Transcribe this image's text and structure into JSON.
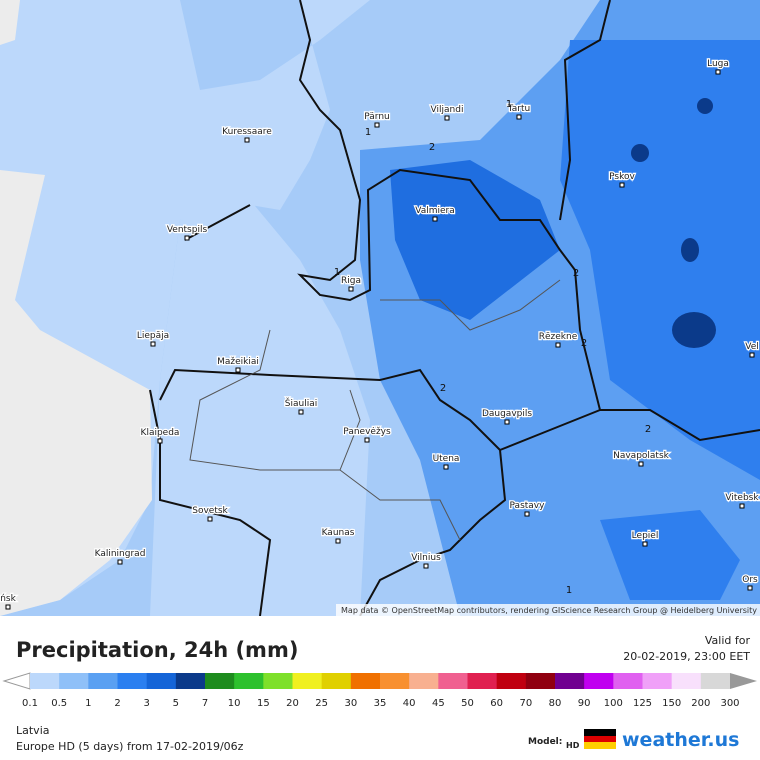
{
  "map": {
    "places": [
      "Kuressaare",
      "Pärnu",
      "Viljandi",
      "Tartu",
      "Luga",
      "Pskov",
      "Valmiera",
      "Ventspils",
      "Riga",
      "Rēzekne",
      "Liepāja",
      "Mažeikiai",
      "Šiauliai",
      "Daugavpils",
      "Panevėžys",
      "Klaipeda",
      "Navapolatsk",
      "Utena",
      "Vitebsk",
      "Sovetsk",
      "Pastavy",
      "Kaunas",
      "Lepiel",
      "Kaliningrad",
      "Vilnius",
      "Vel",
      "Ors",
      "ńsk"
    ],
    "contour_labels": [
      "1",
      "2",
      "1",
      "2",
      "2",
      "2",
      "2",
      "1",
      "1"
    ],
    "attribution": "Map data © OpenStreetMap contributors, rendering GIScience Research Group @ Heidelberg University"
  },
  "footer": {
    "title": "Precipitation, 24h (mm)",
    "valid_label": "Valid for",
    "valid_time": "20-02-2019, 23:00 EET",
    "region": "Latvia",
    "model_run": "Europe HD (5 days) from 17-02-2019/06z",
    "model_label": "Model:",
    "model_badge": "HD",
    "brand": "weather.us"
  },
  "legend": {
    "labels": [
      0.1,
      0.5,
      1,
      2,
      3,
      5,
      7,
      10,
      15,
      20,
      25,
      30,
      35,
      40,
      45,
      50,
      60,
      70,
      80,
      90,
      100,
      125,
      150,
      200,
      300
    ],
    "colors": [
      "#bcd8fb",
      "#8fc0f8",
      "#5aa0f2",
      "#2b7ff0",
      "#1565d8",
      "#0b3a8a",
      "#1e8c1e",
      "#2ec12e",
      "#7ee02a",
      "#f0f020",
      "#e0d000",
      "#f07000",
      "#f89030",
      "#f8b090",
      "#f06090",
      "#e02050",
      "#c00010",
      "#900010",
      "#700090",
      "#c000f0",
      "#e060f0",
      "#f0a0f8",
      "#f8e0fc",
      "#d8d8d8"
    ]
  }
}
